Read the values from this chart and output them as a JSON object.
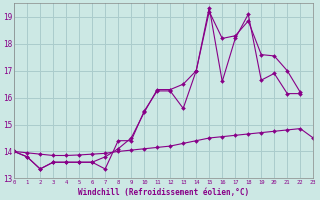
{
  "bg_color": "#cce8e4",
  "grid_color": "#aacccc",
  "line_color": "#880088",
  "xlabel": "Windchill (Refroidissement éolien,°C)",
  "xlim": [
    0,
    23
  ],
  "ylim": [
    13,
    19.5
  ],
  "yticks": [
    13,
    14,
    15,
    16,
    17,
    18,
    19
  ],
  "xticks": [
    0,
    1,
    2,
    3,
    4,
    5,
    6,
    7,
    8,
    9,
    10,
    11,
    12,
    13,
    14,
    15,
    16,
    17,
    18,
    19,
    20,
    21,
    22,
    23
  ],
  "s1_x": [
    0,
    1,
    2,
    3,
    4,
    5,
    6,
    7,
    8,
    9,
    10,
    11,
    12,
    13,
    14,
    15,
    16,
    17,
    18,
    19,
    20,
    21,
    22
  ],
  "s1_y": [
    14.0,
    13.8,
    13.35,
    13.6,
    13.6,
    13.6,
    13.6,
    13.35,
    14.4,
    14.4,
    15.5,
    16.25,
    16.25,
    15.6,
    17.0,
    19.35,
    16.6,
    18.2,
    19.1,
    16.65,
    16.9,
    16.15,
    16.15
  ],
  "s2_x": [
    0,
    1,
    2,
    3,
    4,
    5,
    6,
    7,
    8,
    9,
    10,
    11,
    12,
    13,
    14,
    15,
    16,
    17,
    18,
    19,
    20,
    21,
    22
  ],
  "s2_y": [
    14.0,
    13.8,
    13.35,
    13.6,
    13.6,
    13.6,
    13.6,
    13.8,
    14.1,
    14.5,
    15.45,
    16.3,
    16.3,
    16.5,
    17.0,
    19.2,
    18.2,
    18.3,
    18.85,
    17.6,
    17.55,
    17.0,
    16.2
  ],
  "s3_x": [
    0,
    1,
    2,
    3,
    4,
    5,
    6,
    7,
    8,
    9,
    10,
    11,
    12,
    13,
    14,
    15,
    16,
    17,
    18,
    19,
    20,
    21,
    22,
    23
  ],
  "s3_y": [
    14.0,
    13.95,
    13.9,
    13.85,
    13.85,
    13.87,
    13.9,
    13.93,
    14.0,
    14.05,
    14.1,
    14.15,
    14.2,
    14.3,
    14.4,
    14.5,
    14.55,
    14.6,
    14.65,
    14.7,
    14.75,
    14.8,
    14.85,
    14.5
  ]
}
